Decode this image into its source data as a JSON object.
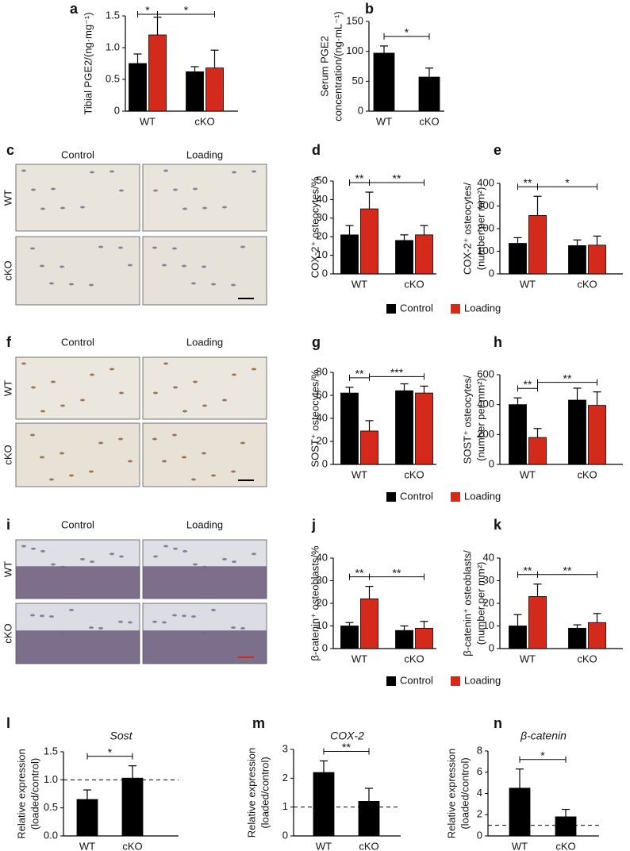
{
  "chart_data": [
    {
      "type": "bar",
      "letter": "a",
      "ylabel": [
        "Tibial PGE2/(ng·mg⁻¹)"
      ],
      "categories": [
        "WT",
        "cKO"
      ],
      "series": [
        {
          "name": "Control",
          "color": "#000000",
          "values": [
            0.75,
            0.62
          ],
          "errors": [
            0.15,
            0.08
          ]
        },
        {
          "name": "Loading",
          "color": "#d42a1c",
          "values": [
            1.2,
            0.68
          ],
          "errors": [
            0.28,
            0.28
          ]
        }
      ],
      "ylim": [
        0,
        1.5
      ],
      "yticks": [
        0,
        0.5,
        {
          "value": 1,
          "label": "1.0"
        },
        1.5
      ],
      "annotations": [
        "*",
        "*"
      ]
    },
    {
      "type": "bar",
      "letter": "b",
      "ylabel": [
        "Serum PGE2",
        "concentration/(ng·mL⁻¹)"
      ],
      "categories": [
        "WT",
        "cKO"
      ],
      "values": [
        97,
        57
      ],
      "errors": [
        12,
        15
      ],
      "color": "#000000",
      "ylim": [
        0,
        150
      ],
      "yticks": [
        0,
        50,
        100,
        150
      ],
      "annotations": [
        "*"
      ]
    },
    {
      "type": "bar",
      "letter": "d",
      "ylabel": [
        "COX-2⁺ osteocytes/%"
      ],
      "categories": [
        "WT",
        "cKO"
      ],
      "series": [
        {
          "name": "Control",
          "color": "#000000",
          "values": [
            21,
            18
          ],
          "errors": [
            5,
            3
          ]
        },
        {
          "name": "Loading",
          "color": "#d42a1c",
          "values": [
            35,
            21
          ],
          "errors": [
            9,
            5
          ]
        }
      ],
      "ylim": [
        0,
        50
      ],
      "yticks": [
        0,
        10,
        20,
        30,
        40,
        50
      ],
      "annotations": [
        "**",
        "**"
      ],
      "legend": "bottom"
    },
    {
      "type": "bar",
      "letter": "e",
      "ylabel": [
        "COX-2⁺ osteocytes/",
        "(number per mm²)"
      ],
      "categories": [
        "WT",
        "cKO"
      ],
      "series": [
        {
          "name": "Control",
          "color": "#000000",
          "values": [
            135,
            125
          ],
          "errors": [
            25,
            25
          ]
        },
        {
          "name": "Loading",
          "color": "#d42a1c",
          "values": [
            258,
            127
          ],
          "errors": [
            85,
            40
          ]
        }
      ],
      "ylim": [
        0,
        400
      ],
      "yticks": [
        0,
        100,
        200,
        300,
        400
      ],
      "annotations": [
        "**",
        "*"
      ]
    },
    {
      "type": "bar",
      "letter": "g",
      "ylabel": [
        "SOST⁺ osteocytes/%"
      ],
      "categories": [
        "WT",
        "cKO"
      ],
      "series": [
        {
          "name": "Control",
          "color": "#000000",
          "values": [
            62,
            64
          ],
          "errors": [
            5,
            6
          ]
        },
        {
          "name": "Loading",
          "color": "#d42a1c",
          "values": [
            29,
            62
          ],
          "errors": [
            9,
            6
          ]
        }
      ],
      "ylim": [
        0,
        80
      ],
      "yticks": [
        0,
        20,
        40,
        60,
        80
      ],
      "annotations": [
        "**",
        "***"
      ],
      "legend": "bottom"
    },
    {
      "type": "bar",
      "letter": "h",
      "ylabel": [
        "SOST⁺ osteocytes/",
        "(number per mm²)"
      ],
      "categories": [
        "WT",
        "cKO"
      ],
      "series": [
        {
          "name": "Control",
          "color": "#000000",
          "values": [
            400,
            430
          ],
          "errors": [
            45,
            80
          ]
        },
        {
          "name": "Loading",
          "color": "#d42a1c",
          "values": [
            180,
            395
          ],
          "errors": [
            60,
            90
          ]
        }
      ],
      "ylim": [
        0,
        600
      ],
      "yticks": [
        0,
        200,
        400,
        600
      ],
      "annotations": [
        "**",
        "**"
      ]
    },
    {
      "type": "bar",
      "letter": "j",
      "ylabel": [
        "β-catenin⁺ osteoblasts/%"
      ],
      "categories": [
        "WT",
        "cKO"
      ],
      "series": [
        {
          "name": "Control",
          "color": "#000000",
          "values": [
            10,
            8
          ],
          "errors": [
            1.5,
            2
          ]
        },
        {
          "name": "Loading",
          "color": "#d42a1c",
          "values": [
            22,
            9
          ],
          "errors": [
            5.5,
            3
          ]
        }
      ],
      "ylim": [
        0,
        40
      ],
      "yticks": [
        0,
        10,
        20,
        30,
        40
      ],
      "annotations": [
        "**",
        "**"
      ],
      "legend": "bottom"
    },
    {
      "type": "bar",
      "letter": "k",
      "ylabel": [
        "β-catenin⁺ osteoblasts/",
        "(number per mm²)"
      ],
      "categories": [
        "WT",
        "cKO"
      ],
      "series": [
        {
          "name": "Control",
          "color": "#000000",
          "values": [
            10,
            9
          ],
          "errors": [
            5,
            1.5
          ]
        },
        {
          "name": "Loading",
          "color": "#d42a1c",
          "values": [
            23,
            11.5
          ],
          "errors": [
            5.5,
            4
          ]
        }
      ],
      "ylim": [
        0,
        40
      ],
      "yticks": [
        0,
        10,
        20,
        30,
        40
      ],
      "annotations": [
        "**",
        "**"
      ]
    },
    {
      "type": "bar",
      "letter": "l",
      "title": "Sost",
      "ylabel": [
        "Relative expression",
        "(loaded/control)"
      ],
      "categories": [
        "WT",
        "cKO"
      ],
      "values": [
        0.65,
        1.03
      ],
      "errors": [
        0.17,
        0.22
      ],
      "color": "#000000",
      "reference_line": 1,
      "ylim": [
        0,
        1.5
      ],
      "yticks": [
        {
          "value": 0,
          "label": "0.0"
        },
        0.5,
        {
          "value": 1,
          "label": "1.0"
        },
        1.5
      ],
      "annotations": [
        "*"
      ]
    },
    {
      "type": "bar",
      "letter": "m",
      "title": "COX-2",
      "ylabel": [
        "Relative expression",
        "(loaded/control)"
      ],
      "categories": [
        "WT",
        "cKO"
      ],
      "values": [
        2.2,
        1.2
      ],
      "errors": [
        0.4,
        0.45
      ],
      "color": "#000000",
      "reference_line": 1,
      "ylim": [
        0,
        3
      ],
      "yticks": [
        0,
        1,
        2,
        3
      ],
      "annotations": [
        "**"
      ]
    },
    {
      "type": "bar",
      "letter": "n",
      "title": "β-catenin",
      "ylabel": [
        "Relative expression",
        "(loaded/control)"
      ],
      "categories": [
        "WT",
        "cKO"
      ],
      "values": [
        4.5,
        1.8
      ],
      "errors": [
        1.8,
        0.7
      ],
      "color": "#000000",
      "reference_line": 1,
      "ylim": [
        0,
        8
      ],
      "yticks": [
        0,
        2,
        4,
        6,
        8
      ],
      "annotations": [
        "*"
      ]
    }
  ],
  "image_panels": [
    {
      "letter": "c",
      "columns": [
        "Control",
        "Loading"
      ],
      "rows": [
        "WT",
        "cKO"
      ]
    },
    {
      "letter": "f",
      "columns": [
        "Control",
        "Loading"
      ],
      "rows": [
        "WT",
        "cKO"
      ]
    },
    {
      "letter": "i",
      "columns": [
        "Control",
        "Loading"
      ],
      "rows": [
        "WT",
        "cKO"
      ]
    }
  ]
}
